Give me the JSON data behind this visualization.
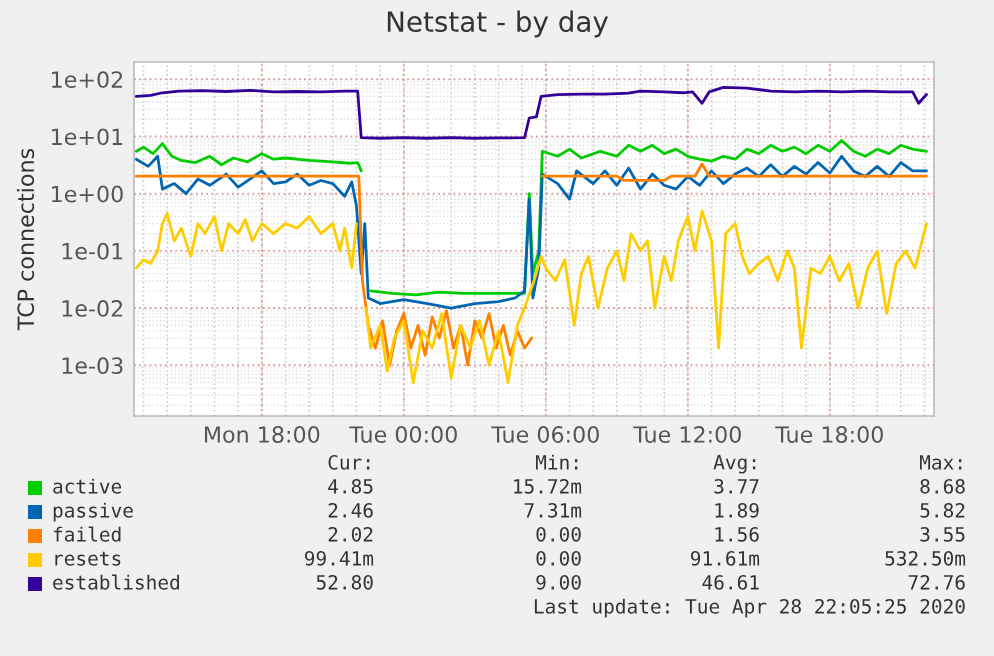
{
  "chart_data": {
    "type": "line",
    "title": "Netstat - by day",
    "ylabel": "TCP connections",
    "log": "y",
    "xlim": [
      "2020-04-27T12:36",
      "2020-04-28T22:24"
    ],
    "ylim": [
      0.00013,
      200
    ],
    "xticks": [
      {
        "value": "2020-04-27T18:00",
        "label": "Mon 18:00"
      },
      {
        "value": "2020-04-28T00:00",
        "label": "Tue 00:00"
      },
      {
        "value": "2020-04-28T06:00",
        "label": "Tue 06:00"
      },
      {
        "value": "2020-04-28T12:00",
        "label": "Tue 12:00"
      },
      {
        "value": "2020-04-28T18:00",
        "label": "Tue 18:00"
      }
    ],
    "yticks": [
      {
        "value": 0.001,
        "label": "1e-03"
      },
      {
        "value": 0.01,
        "label": "1e-02"
      },
      {
        "value": 0.1,
        "label": "1e-01"
      },
      {
        "value": 1,
        "label": "1e+00"
      },
      {
        "value": 10,
        "label": "1e+01"
      },
      {
        "value": 100,
        "label": "1e+02"
      }
    ],
    "grid": true,
    "legend": "bottom",
    "line_style": "solid",
    "marker": "none",
    "series": [
      {
        "name": "active",
        "color": "#00cc00",
        "x": [
          "2020-04-27T12:42",
          "2020-04-27T13:00",
          "2020-04-27T13:24",
          "2020-04-27T13:48",
          "2020-04-27T14:12",
          "2020-04-27T14:36",
          "2020-04-27T15:12",
          "2020-04-27T15:48",
          "2020-04-27T16:18",
          "2020-04-27T16:48",
          "2020-04-27T17:24",
          "2020-04-27T18:00",
          "2020-04-27T18:30",
          "2020-04-27T19:00",
          "2020-04-27T20:00",
          "2020-04-27T21:00",
          "2020-04-27T21:42",
          "2020-04-27T22:03",
          "2020-04-27T22:12",
          "2020-04-27T22:24",
          "2020-04-27T22:36",
          "2020-04-27T23:30",
          "2020-04-28T00:30",
          "2020-04-28T01:30",
          "2020-04-28T02:30",
          "2020-04-28T03:30",
          "2020-04-28T04:30",
          "2020-04-28T05:06",
          "2020-04-28T05:18",
          "2020-04-28T05:27",
          "2020-04-28T05:42",
          "2020-04-28T05:51",
          "2020-04-28T06:30",
          "2020-04-28T07:00",
          "2020-04-28T07:30",
          "2020-04-28T08:18",
          "2020-04-28T09:00",
          "2020-04-28T09:30",
          "2020-04-28T10:00",
          "2020-04-28T10:30",
          "2020-04-28T11:00",
          "2020-04-28T11:30",
          "2020-04-28T12:00",
          "2020-04-28T12:30",
          "2020-04-28T13:00",
          "2020-04-28T13:30",
          "2020-04-28T14:00",
          "2020-04-28T14:30",
          "2020-04-28T15:00",
          "2020-04-28T15:30",
          "2020-04-28T16:00",
          "2020-04-28T16:30",
          "2020-04-28T17:00",
          "2020-04-28T17:30",
          "2020-04-28T18:00",
          "2020-04-28T18:30",
          "2020-04-28T19:00",
          "2020-04-28T19:30",
          "2020-04-28T20:00",
          "2020-04-28T20:30",
          "2020-04-28T21:00",
          "2020-04-28T21:30",
          "2020-04-28T22:05"
        ],
        "values": [
          5.5,
          6.5,
          5,
          7.5,
          4.5,
          3.8,
          3.5,
          4.5,
          3.2,
          4.2,
          3.6,
          5,
          4,
          4.2,
          3.8,
          3.6,
          3.4,
          3.5,
          2.5,
          null,
          0.02,
          0.018,
          0.017,
          0.019,
          0.018,
          0.018,
          0.018,
          0.018,
          1.0,
          0.04,
          0.1,
          5.5,
          4.5,
          6,
          4.2,
          5.5,
          4.5,
          7,
          5.5,
          7,
          5,
          6,
          4.5,
          4,
          3.7,
          4.5,
          4,
          6,
          5,
          7,
          5.5,
          6.5,
          5,
          7,
          5.5,
          8.5,
          5.5,
          4.5,
          6,
          5,
          7,
          6,
          5.5
        ]
      },
      {
        "name": "passive",
        "color": "#0066b3",
        "x": [
          "2020-04-27T12:42",
          "2020-04-27T13:12",
          "2020-04-27T13:36",
          "2020-04-27T13:48",
          "2020-04-27T14:18",
          "2020-04-27T14:48",
          "2020-04-27T15:18",
          "2020-04-27T15:48",
          "2020-04-27T16:30",
          "2020-04-27T17:00",
          "2020-04-27T17:30",
          "2020-04-27T18:00",
          "2020-04-27T18:30",
          "2020-04-27T19:00",
          "2020-04-27T19:30",
          "2020-04-27T20:00",
          "2020-04-27T20:30",
          "2020-04-27T21:00",
          "2020-04-27T21:30",
          "2020-04-27T21:48",
          "2020-04-27T22:00",
          "2020-04-27T22:12",
          "2020-04-27T22:21",
          "2020-04-27T22:30",
          "2020-04-27T23:00",
          "2020-04-28T00:00",
          "2020-04-28T01:00",
          "2020-04-28T02:00",
          "2020-04-28T03:00",
          "2020-04-28T04:00",
          "2020-04-28T04:42",
          "2020-04-28T05:06",
          "2020-04-28T05:18",
          "2020-04-28T05:27",
          "2020-04-28T05:42",
          "2020-04-28T05:51",
          "2020-04-28T06:30",
          "2020-04-28T07:00",
          "2020-04-28T07:18",
          "2020-04-28T08:00",
          "2020-04-28T08:30",
          "2020-04-28T09:00",
          "2020-04-28T09:30",
          "2020-04-28T10:00",
          "2020-04-28T10:30",
          "2020-04-28T11:00",
          "2020-04-28T11:30",
          "2020-04-28T12:00",
          "2020-04-28T12:30",
          "2020-04-28T13:00",
          "2020-04-28T13:30",
          "2020-04-28T14:00",
          "2020-04-28T14:30",
          "2020-04-28T15:00",
          "2020-04-28T15:30",
          "2020-04-28T16:00",
          "2020-04-28T16:30",
          "2020-04-28T17:00",
          "2020-04-28T17:30",
          "2020-04-28T18:00",
          "2020-04-28T18:30",
          "2020-04-28T19:00",
          "2020-04-28T19:30",
          "2020-04-28T20:00",
          "2020-04-28T20:30",
          "2020-04-28T21:00",
          "2020-04-28T21:30",
          "2020-04-28T22:05"
        ],
        "values": [
          4,
          3,
          4.5,
          1.2,
          1.5,
          1.0,
          1.8,
          1.4,
          2.2,
          1.3,
          1.8,
          2.5,
          1.5,
          1.6,
          2.2,
          1.4,
          1.7,
          1.5,
          0.9,
          1.6,
          0.6,
          0.04,
          0.3,
          0.015,
          0.012,
          0.014,
          0.012,
          0.01,
          0.012,
          0.013,
          0.015,
          0.02,
          0.8,
          0.015,
          0.05,
          2.2,
          1.5,
          0.8,
          2.5,
          1.5,
          2.5,
          1.4,
          2.8,
          1.2,
          2.2,
          1.4,
          1.2,
          2,
          1.4,
          2.5,
          1.5,
          2.2,
          2.8,
          2,
          3.2,
          2,
          3,
          2.2,
          3.5,
          2.3,
          4.5,
          2.5,
          2,
          3,
          2,
          3.5,
          2.5,
          2.5
        ]
      },
      {
        "name": "failed",
        "color": "#ff8000",
        "x": [
          "2020-04-27T12:42",
          "2020-04-27T22:06",
          "2020-04-27T22:15",
          "2020-04-27T22:30",
          "2020-04-27T22:48",
          "2020-04-27T23:06",
          "2020-04-27T23:24",
          "2020-04-27T23:42",
          "2020-04-28T00:00",
          "2020-04-28T00:18",
          "2020-04-28T00:36",
          "2020-04-28T00:54",
          "2020-04-28T01:12",
          "2020-04-28T01:30",
          "2020-04-28T01:48",
          "2020-04-28T02:06",
          "2020-04-28T02:24",
          "2020-04-28T02:42",
          "2020-04-28T03:00",
          "2020-04-28T03:18",
          "2020-04-28T03:36",
          "2020-04-28T03:54",
          "2020-04-28T04:12",
          "2020-04-28T04:30",
          "2020-04-28T04:48",
          "2020-04-28T05:06",
          "2020-04-28T05:24",
          "2020-04-28T05:36",
          "2020-04-28T05:51",
          "2020-04-28T09:00",
          "2020-04-28T09:18",
          "2020-04-28T11:00",
          "2020-04-28T11:18",
          "2020-04-28T12:18",
          "2020-04-28T12:36",
          "2020-04-28T12:54",
          "2020-04-28T22:05"
        ],
        "values": [
          2.02,
          2.02,
          0.03,
          0.005,
          0.002,
          0.006,
          0.001,
          0.004,
          0.008,
          0.002,
          0.005,
          0.0015,
          0.007,
          0.003,
          0.009,
          0.002,
          0.005,
          0.001,
          0.006,
          0.003,
          0.008,
          0.002,
          0.005,
          0.0015,
          0.004,
          0.002,
          0.003,
          null,
          2.02,
          2.02,
          1.7,
          1.7,
          2.02,
          2.02,
          3.3,
          2.02,
          2.02
        ]
      },
      {
        "name": "resets",
        "color": "#ffcc00",
        "x": [
          "2020-04-27T12:42",
          "2020-04-27T13:00",
          "2020-04-27T13:18",
          "2020-04-27T13:36",
          "2020-04-27T13:48",
          "2020-04-27T14:00",
          "2020-04-27T14:18",
          "2020-04-27T14:36",
          "2020-04-27T15:00",
          "2020-04-27T15:18",
          "2020-04-27T15:36",
          "2020-04-27T16:00",
          "2020-04-27T16:18",
          "2020-04-27T16:36",
          "2020-04-27T17:00",
          "2020-04-27T17:18",
          "2020-04-27T17:36",
          "2020-04-27T18:00",
          "2020-04-27T18:30",
          "2020-04-27T19:00",
          "2020-04-27T19:30",
          "2020-04-27T20:00",
          "2020-04-27T20:30",
          "2020-04-27T21:00",
          "2020-04-27T21:18",
          "2020-04-27T21:30",
          "2020-04-27T21:48",
          "2020-04-27T22:00",
          "2020-04-27T22:09",
          "2020-04-27T22:24",
          "2020-04-27T22:36",
          "2020-04-27T23:00",
          "2020-04-27T23:18",
          "2020-04-27T23:36",
          "2020-04-28T00:00",
          "2020-04-28T00:24",
          "2020-04-28T00:48",
          "2020-04-28T01:12",
          "2020-04-28T01:36",
          "2020-04-28T02:00",
          "2020-04-28T02:24",
          "2020-04-28T02:48",
          "2020-04-28T03:12",
          "2020-04-28T03:36",
          "2020-04-28T04:00",
          "2020-04-28T04:24",
          "2020-04-28T04:48",
          "2020-04-28T05:06",
          "2020-04-28T05:30",
          "2020-04-28T05:48",
          "2020-04-28T06:00",
          "2020-04-28T06:24",
          "2020-04-28T06:48",
          "2020-04-28T07:12",
          "2020-04-28T07:30",
          "2020-04-28T07:48",
          "2020-04-28T08:12",
          "2020-04-28T08:36",
          "2020-04-28T09:00",
          "2020-04-28T09:18",
          "2020-04-28T09:36",
          "2020-04-28T10:00",
          "2020-04-28T10:18",
          "2020-04-28T10:36",
          "2020-04-28T11:00",
          "2020-04-28T11:18",
          "2020-04-28T11:36",
          "2020-04-28T12:00",
          "2020-04-28T12:18",
          "2020-04-28T12:36",
          "2020-04-28T13:00",
          "2020-04-28T13:18",
          "2020-04-28T13:36",
          "2020-04-28T14:00",
          "2020-04-28T14:18",
          "2020-04-28T14:36",
          "2020-04-28T15:00",
          "2020-04-28T15:24",
          "2020-04-28T15:48",
          "2020-04-28T16:12",
          "2020-04-28T16:30",
          "2020-04-28T16:48",
          "2020-04-28T17:12",
          "2020-04-28T17:36",
          "2020-04-28T18:00",
          "2020-04-28T18:24",
          "2020-04-28T18:48",
          "2020-04-28T19:12",
          "2020-04-28T19:36",
          "2020-04-28T20:00",
          "2020-04-28T20:24",
          "2020-04-28T20:48",
          "2020-04-28T21:12",
          "2020-04-28T21:36",
          "2020-04-28T22:05"
        ],
        "values": [
          0.05,
          0.07,
          0.06,
          0.1,
          0.3,
          0.45,
          0.15,
          0.25,
          0.08,
          0.3,
          0.2,
          0.4,
          0.1,
          0.3,
          0.2,
          0.35,
          0.15,
          0.3,
          0.2,
          0.3,
          0.25,
          0.4,
          0.2,
          0.3,
          0.1,
          0.25,
          0.05,
          0.3,
          null,
          0.01,
          0.002,
          0.005,
          0.0008,
          0.003,
          0.006,
          0.0005,
          0.004,
          0.002,
          0.008,
          0.0006,
          0.005,
          0.002,
          0.006,
          0.001,
          0.004,
          0.0005,
          0.005,
          0.01,
          0.03,
          0.08,
          0.05,
          0.03,
          0.07,
          0.005,
          0.04,
          0.08,
          0.01,
          0.05,
          0.1,
          0.03,
          0.2,
          0.1,
          0.15,
          0.01,
          0.08,
          0.03,
          0.15,
          0.4,
          0.1,
          0.5,
          0.15,
          0.002,
          0.2,
          0.3,
          0.08,
          0.04,
          0.06,
          0.08,
          0.03,
          0.1,
          0.05,
          0.002,
          0.05,
          0.04,
          0.08,
          0.03,
          0.06,
          0.01,
          0.05,
          0.1,
          0.008,
          0.06,
          0.1,
          0.05,
          0.3
        ]
      },
      {
        "name": "established",
        "color": "#330099",
        "x": [
          "2020-04-27T12:42",
          "2020-04-27T13:18",
          "2020-04-27T13:48",
          "2020-04-27T14:30",
          "2020-04-27T15:30",
          "2020-04-27T16:30",
          "2020-04-27T17:30",
          "2020-04-27T18:30",
          "2020-04-27T19:30",
          "2020-04-27T20:30",
          "2020-04-27T21:30",
          "2020-04-27T22:03",
          "2020-04-27T22:12",
          "2020-04-27T23:00",
          "2020-04-28T00:00",
          "2020-04-28T01:00",
          "2020-04-28T02:00",
          "2020-04-28T03:00",
          "2020-04-28T04:00",
          "2020-04-28T05:06",
          "2020-04-28T05:18",
          "2020-04-28T05:36",
          "2020-04-28T05:48",
          "2020-04-28T06:30",
          "2020-04-28T07:30",
          "2020-04-28T08:30",
          "2020-04-28T09:30",
          "2020-04-28T10:00",
          "2020-04-28T11:00",
          "2020-04-28T11:48",
          "2020-04-28T12:12",
          "2020-04-28T12:36",
          "2020-04-28T12:54",
          "2020-04-28T13:30",
          "2020-04-28T14:30",
          "2020-04-28T15:30",
          "2020-04-28T16:30",
          "2020-04-28T17:30",
          "2020-04-28T18:30",
          "2020-04-28T19:30",
          "2020-04-28T20:30",
          "2020-04-28T21:30",
          "2020-04-28T21:45",
          "2020-04-28T22:05"
        ],
        "values": [
          50,
          52,
          58,
          62,
          63,
          61,
          64,
          60,
          61,
          60,
          62,
          62,
          9.5,
          9.3,
          9.5,
          9.3,
          9.5,
          9.3,
          9.4,
          9.5,
          21,
          22,
          50,
          54,
          55,
          55,
          57,
          62,
          60,
          58,
          60,
          38,
          60,
          72,
          70,
          62,
          60,
          62,
          60,
          62,
          60,
          60,
          38,
          54
        ]
      }
    ],
    "annotations": [
      "Cur:",
      "Min:",
      "Avg:",
      "Max:",
      "4.85",
      "15.72m",
      "3.77",
      "8.68",
      "2.46",
      "7.31m",
      "1.89",
      "5.82",
      "2.02",
      "0.00",
      "1.56",
      "3.55",
      "99.41m",
      "0.00",
      "91.61m",
      "532.50m",
      "52.80",
      "9.00",
      "46.61",
      "72.76",
      "Last update: Tue Apr 28 22:05:25 2020"
    ]
  }
}
